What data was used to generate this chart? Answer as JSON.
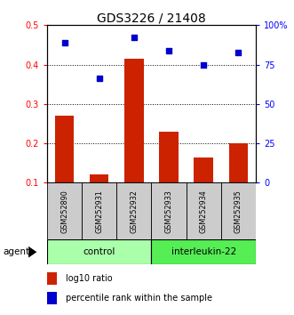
{
  "title": "GDS3226 / 21408",
  "samples": [
    "GSM252890",
    "GSM252931",
    "GSM252932",
    "GSM252933",
    "GSM252934",
    "GSM252935"
  ],
  "bar_values": [
    0.27,
    0.12,
    0.415,
    0.23,
    0.165,
    0.2
  ],
  "scatter_values_left": [
    0.455,
    0.365,
    0.47,
    0.435,
    0.4,
    0.43
  ],
  "bar_color": "#cc2200",
  "scatter_color": "#0000cc",
  "ylim_left": [
    0.1,
    0.5
  ],
  "ylim_right": [
    0,
    100
  ],
  "yticks_left": [
    0.1,
    0.2,
    0.3,
    0.4,
    0.5
  ],
  "ytick_labels_left": [
    "0.1",
    "0.2",
    "0.3",
    "0.4",
    "0.5"
  ],
  "yticks_right": [
    0,
    25,
    50,
    75,
    100
  ],
  "ytick_labels_right": [
    "0",
    "25",
    "50",
    "75",
    "100%"
  ],
  "groups": [
    {
      "label": "control",
      "color": "#aaffaa",
      "start": 0,
      "end": 3
    },
    {
      "label": "interleukin-22",
      "color": "#55ee55",
      "start": 3,
      "end": 6
    }
  ],
  "agent_label": "agent",
  "legend_bar_label": "log10 ratio",
  "legend_scatter_label": "percentile rank within the sample",
  "background_color": "#ffffff",
  "sample_box_color": "#cccccc",
  "bar_bottom": 0.1,
  "n_samples": 6
}
